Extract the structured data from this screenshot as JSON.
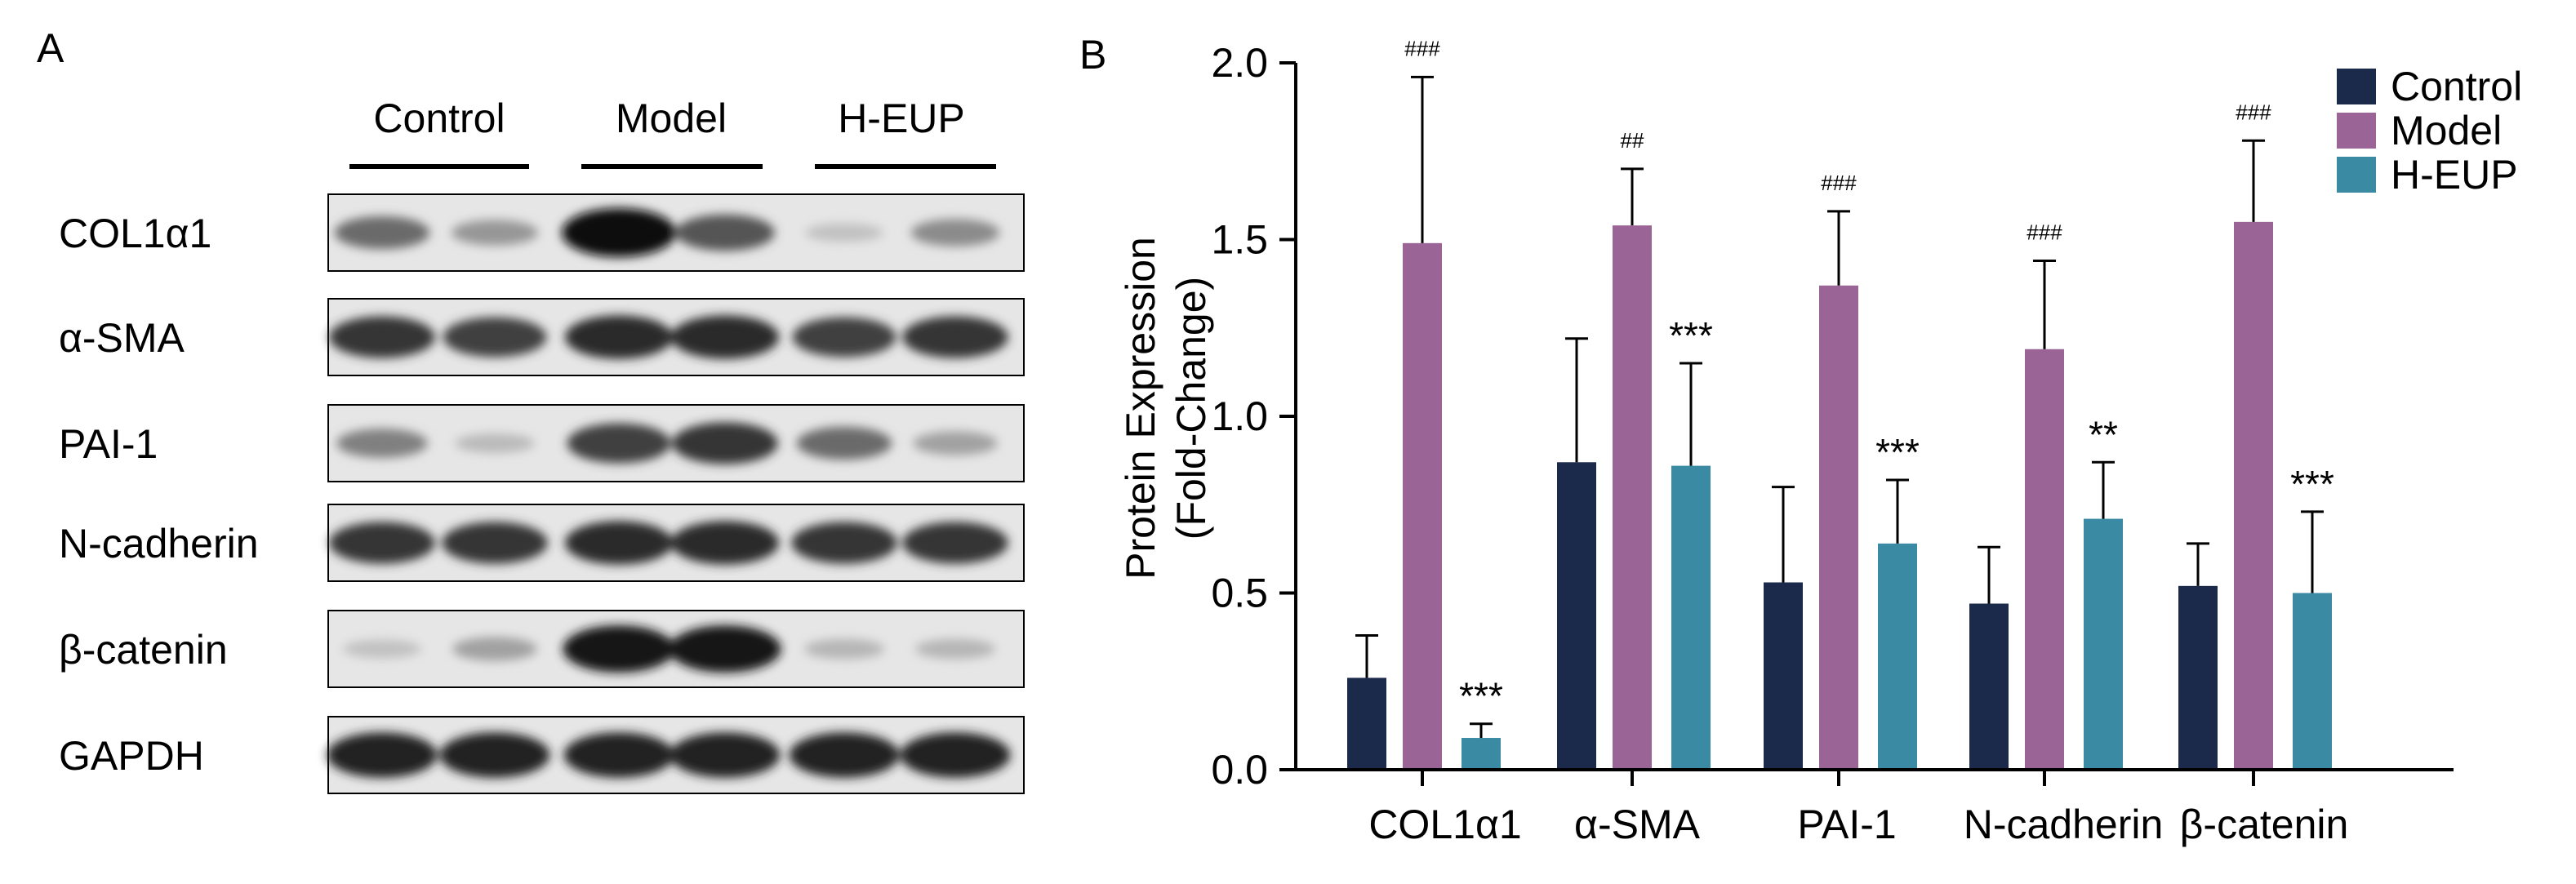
{
  "panel_a": {
    "label": "A",
    "groups": [
      "Control",
      "Model",
      "H-EUP"
    ],
    "rows": [
      "COL1α1",
      "α-SMA",
      "PAI-1",
      "N-cadherin",
      "β-catenin",
      "GAPDH"
    ],
    "band_intensity": [
      [
        0.55,
        0.35,
        1.0,
        0.65,
        0.15,
        0.4
      ],
      [
        0.8,
        0.75,
        0.85,
        0.85,
        0.75,
        0.8
      ],
      [
        0.45,
        0.18,
        0.75,
        0.8,
        0.55,
        0.3
      ],
      [
        0.8,
        0.8,
        0.85,
        0.85,
        0.8,
        0.8
      ],
      [
        0.15,
        0.3,
        0.95,
        0.95,
        0.2,
        0.2
      ],
      [
        0.9,
        0.9,
        0.9,
        0.9,
        0.9,
        0.9
      ]
    ]
  },
  "panel_b": {
    "label": "B"
  },
  "chart_data": {
    "type": "bar",
    "categories": [
      "COL1α1",
      "α-SMA",
      "PAI-1",
      "N-cadherin",
      "β-catenin"
    ],
    "series": [
      {
        "name": "Control",
        "color": "#1b2a4a",
        "values": [
          0.26,
          0.87,
          0.53,
          0.47,
          0.52
        ],
        "errors": [
          0.12,
          0.35,
          0.27,
          0.16,
          0.12
        ],
        "annotations": [
          "",
          "",
          "",
          "",
          ""
        ]
      },
      {
        "name": "Model",
        "color": "#9b6496",
        "values": [
          1.49,
          1.54,
          1.37,
          1.19,
          1.55
        ],
        "errors": [
          0.47,
          0.16,
          0.21,
          0.25,
          0.23
        ],
        "annotations": [
          "###",
          "##",
          "###",
          "###",
          "###"
        ]
      },
      {
        "name": "H-EUP",
        "color": "#3a8aa3",
        "values": [
          0.09,
          0.86,
          0.64,
          0.71,
          0.5
        ],
        "errors": [
          0.04,
          0.29,
          0.18,
          0.16,
          0.23
        ],
        "annotations": [
          "***",
          "***",
          "***",
          "**",
          "***"
        ]
      }
    ],
    "ylabel": [
      "Protein Expression",
      "(Fold-Change)"
    ],
    "ylim": [
      0,
      2.0
    ],
    "yticks": [
      "0.0",
      "0.5",
      "1.0",
      "1.5",
      "2.0"
    ],
    "legend_position": "top-right",
    "grid": false
  }
}
